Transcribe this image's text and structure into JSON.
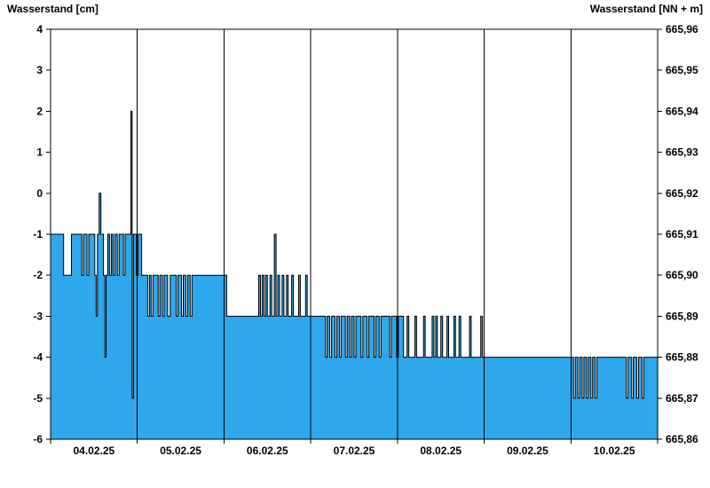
{
  "page": {
    "background": "#ffffff"
  },
  "chart_data": {
    "type": "area",
    "title_left": "Wasserstand [cm]",
    "title_right": "Wasserstand [NN + m]",
    "x_tick_labels": [
      "04.02.25",
      "05.02.25",
      "06.02.25",
      "07.02.25",
      "08.02.25",
      "09.02.25",
      "10.02.25"
    ],
    "x_range_days": [
      0,
      7
    ],
    "left_axis": {
      "label": "Wasserstand [cm]",
      "max": 4,
      "min": -6,
      "tick_labels": [
        "4",
        "3",
        "2",
        "1",
        "0",
        "-1",
        "-2",
        "-3",
        "-4",
        "-5",
        "-6"
      ]
    },
    "right_axis": {
      "label": "Wasserstand [NN + m]",
      "max": 665.96,
      "min": 665.86,
      "tick_labels": [
        "665,96",
        "665,95",
        "665,94",
        "665,93",
        "665,92",
        "665,91",
        "665,90",
        "665,89",
        "665,88",
        "665,87",
        "665,86"
      ]
    },
    "grid": {
      "vertical_day_lines": true,
      "horizontal_lines": false
    },
    "series": [
      {
        "name": "Wasserstand",
        "fill_color": "#2FA7EC",
        "line_color": "#000000",
        "baseline": -6,
        "step": "after",
        "points": [
          [
            0.0,
            -1
          ],
          [
            0.15,
            -2
          ],
          [
            0.24,
            -1
          ],
          [
            0.36,
            -2
          ],
          [
            0.38,
            -1
          ],
          [
            0.42,
            -2
          ],
          [
            0.44,
            -1
          ],
          [
            0.51,
            -2
          ],
          [
            0.525,
            -3
          ],
          [
            0.54,
            -1
          ],
          [
            0.56,
            0
          ],
          [
            0.58,
            -1
          ],
          [
            0.61,
            -2
          ],
          [
            0.625,
            -4
          ],
          [
            0.64,
            -2
          ],
          [
            0.66,
            -1
          ],
          [
            0.68,
            -2
          ],
          [
            0.7,
            -1
          ],
          [
            0.72,
            -2
          ],
          [
            0.74,
            -1
          ],
          [
            0.77,
            -2
          ],
          [
            0.79,
            -1
          ],
          [
            0.84,
            -2
          ],
          [
            0.86,
            -1
          ],
          [
            0.925,
            2
          ],
          [
            0.94,
            -5
          ],
          [
            0.955,
            -1
          ],
          [
            0.99,
            -2
          ],
          [
            1.01,
            -1
          ],
          [
            1.05,
            -2
          ],
          [
            1.12,
            -3
          ],
          [
            1.14,
            -2
          ],
          [
            1.16,
            -3
          ],
          [
            1.18,
            -2
          ],
          [
            1.24,
            -3
          ],
          [
            1.26,
            -2
          ],
          [
            1.29,
            -3
          ],
          [
            1.31,
            -2
          ],
          [
            1.35,
            -3
          ],
          [
            1.38,
            -2
          ],
          [
            1.45,
            -3
          ],
          [
            1.47,
            -2
          ],
          [
            1.51,
            -3
          ],
          [
            1.53,
            -2
          ],
          [
            1.56,
            -3
          ],
          [
            1.58,
            -2
          ],
          [
            1.61,
            -3
          ],
          [
            1.63,
            -2
          ],
          [
            2.03,
            -3
          ],
          [
            2.4,
            -2
          ],
          [
            2.42,
            -3
          ],
          [
            2.44,
            -2
          ],
          [
            2.46,
            -3
          ],
          [
            2.48,
            -2
          ],
          [
            2.5,
            -3
          ],
          [
            2.53,
            -2
          ],
          [
            2.55,
            -3
          ],
          [
            2.58,
            -1
          ],
          [
            2.6,
            -3
          ],
          [
            2.62,
            -2
          ],
          [
            2.64,
            -3
          ],
          [
            2.67,
            -2
          ],
          [
            2.69,
            -3
          ],
          [
            2.72,
            -2
          ],
          [
            2.74,
            -3
          ],
          [
            2.78,
            -2
          ],
          [
            2.8,
            -3
          ],
          [
            2.86,
            -2
          ],
          [
            2.88,
            -3
          ],
          [
            2.94,
            -2
          ],
          [
            2.96,
            -3
          ],
          [
            3.17,
            -4
          ],
          [
            3.19,
            -3
          ],
          [
            3.22,
            -4
          ],
          [
            3.24,
            -3
          ],
          [
            3.28,
            -4
          ],
          [
            3.3,
            -3
          ],
          [
            3.33,
            -4
          ],
          [
            3.35,
            -3
          ],
          [
            3.4,
            -4
          ],
          [
            3.42,
            -3
          ],
          [
            3.45,
            -4
          ],
          [
            3.47,
            -3
          ],
          [
            3.5,
            -4
          ],
          [
            3.52,
            -3
          ],
          [
            3.58,
            -4
          ],
          [
            3.6,
            -3
          ],
          [
            3.65,
            -4
          ],
          [
            3.67,
            -3
          ],
          [
            3.73,
            -4
          ],
          [
            3.75,
            -3
          ],
          [
            3.79,
            -4
          ],
          [
            3.81,
            -3
          ],
          [
            3.91,
            -4
          ],
          [
            3.93,
            -3
          ],
          [
            3.99,
            -4
          ],
          [
            4.01,
            -3
          ],
          [
            4.07,
            -4
          ],
          [
            4.11,
            -3
          ],
          [
            4.13,
            -4
          ],
          [
            4.2,
            -3
          ],
          [
            4.22,
            -4
          ],
          [
            4.3,
            -3
          ],
          [
            4.32,
            -4
          ],
          [
            4.4,
            -3
          ],
          [
            4.42,
            -4
          ],
          [
            4.44,
            -3
          ],
          [
            4.46,
            -4
          ],
          [
            4.5,
            -3
          ],
          [
            4.52,
            -4
          ],
          [
            4.57,
            -3
          ],
          [
            4.59,
            -4
          ],
          [
            4.65,
            -3
          ],
          [
            4.67,
            -4
          ],
          [
            4.71,
            -3
          ],
          [
            4.73,
            -4
          ],
          [
            4.83,
            -3
          ],
          [
            4.85,
            -4
          ],
          [
            4.96,
            -3
          ],
          [
            4.98,
            -4
          ],
          [
            6.03,
            -5
          ],
          [
            6.05,
            -4
          ],
          [
            6.08,
            -5
          ],
          [
            6.1,
            -4
          ],
          [
            6.13,
            -5
          ],
          [
            6.15,
            -4
          ],
          [
            6.18,
            -5
          ],
          [
            6.2,
            -4
          ],
          [
            6.23,
            -5
          ],
          [
            6.25,
            -4
          ],
          [
            6.28,
            -5
          ],
          [
            6.3,
            -4
          ],
          [
            6.64,
            -5
          ],
          [
            6.66,
            -4
          ],
          [
            6.7,
            -5
          ],
          [
            6.72,
            -4
          ],
          [
            6.76,
            -5
          ],
          [
            6.78,
            -4
          ],
          [
            6.82,
            -5
          ],
          [
            6.84,
            -4
          ],
          [
            7.0,
            -4
          ]
        ]
      }
    ]
  }
}
